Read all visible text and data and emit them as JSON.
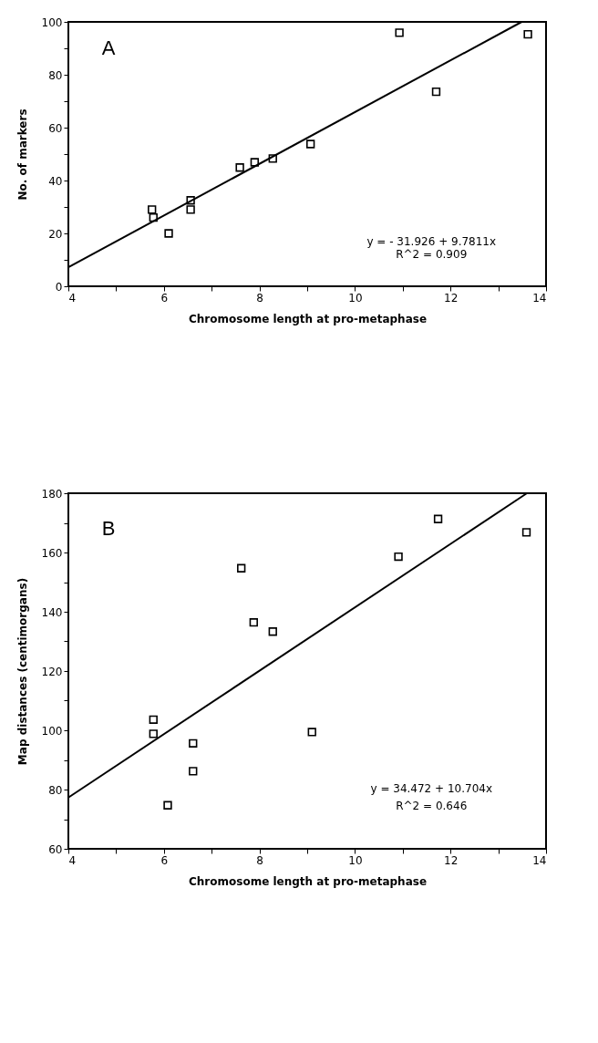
{
  "chart_data": [
    {
      "type": "scatter",
      "xlabel": "Chromosome length at pro-metaphase",
      "ylabel": "No. of markers",
      "xlim": [
        4,
        14
      ],
      "xticks": [
        4,
        {
          "value": 5,
          "label": null
        },
        6,
        {
          "value": 7,
          "label": null
        },
        8,
        {
          "value": 9,
          "label": null
        },
        10,
        {
          "value": 11,
          "label": null
        },
        12,
        {
          "value": 13,
          "label": null
        },
        14
      ],
      "ylim": [
        0,
        100
      ],
      "yticks": [
        0,
        {
          "value": 10,
          "label": null
        },
        20,
        {
          "value": 30,
          "label": null
        },
        40,
        {
          "value": 50,
          "label": null
        },
        60,
        {
          "value": 70,
          "label": null
        },
        80,
        {
          "value": 90,
          "label": null
        },
        100
      ],
      "grid": false,
      "annotations": [
        "A",
        "y =  - 31.926 + 9.7811x",
        "R^2 = 0.909"
      ],
      "series": [
        {
          "type": "scatter",
          "marker": "square",
          "color": "#000000",
          "x": [
            10.93,
            13.62,
            11.7,
            9.07,
            8.28,
            7.9,
            7.59,
            6.56,
            6.56,
            5.75,
            5.78,
            6.1
          ],
          "values": [
            95.9,
            95.3,
            73.6,
            53.8,
            48.3,
            46.9,
            44.9,
            32.5,
            29,
            29,
            26,
            20
          ]
        },
        {
          "type": "line",
          "color": "#000000",
          "x": [
            4,
            13.49
          ],
          "values": [
            7.2,
            100
          ]
        }
      ]
    },
    {
      "type": "scatter",
      "xlabel": "Chromosome length at pro-metaphase",
      "ylabel": "Map distances (centimorgans)",
      "xlim": [
        4,
        14
      ],
      "xticks": [
        4,
        {
          "value": 5,
          "label": null
        },
        6,
        {
          "value": 7,
          "label": null
        },
        8,
        {
          "value": 9,
          "label": null
        },
        10,
        {
          "value": 11,
          "label": null
        },
        12,
        {
          "value": 13,
          "label": null
        },
        14
      ],
      "ylim": [
        60,
        180
      ],
      "yticks": [
        60,
        {
          "value": 70,
          "label": null
        },
        80,
        {
          "value": 90,
          "label": null
        },
        100,
        {
          "value": 110,
          "label": null
        },
        120,
        {
          "value": 130,
          "label": null
        },
        140,
        {
          "value": 150,
          "label": null
        },
        160,
        {
          "value": 170,
          "label": null
        },
        180
      ],
      "grid": false,
      "annotations": [
        "B",
        "y = 34.472 + 10.704x",
        "R^2 = 0.646"
      ],
      "series": [
        {
          "type": "scatter",
          "marker": "square",
          "color": "#000000",
          "x": [
            11.74,
            13.59,
            10.91,
            7.62,
            7.88,
            8.28,
            9.1,
            5.78,
            5.78,
            6.61,
            6.61,
            6.08
          ],
          "values": [
            171.3,
            166.8,
            158.6,
            154.7,
            136.4,
            133.3,
            99.4,
            103.6,
            98.8,
            95.6,
            86.2,
            74.7
          ]
        },
        {
          "type": "line",
          "color": "#000000",
          "x": [
            4,
            13.6
          ],
          "values": [
            77.3,
            180
          ]
        }
      ]
    }
  ]
}
